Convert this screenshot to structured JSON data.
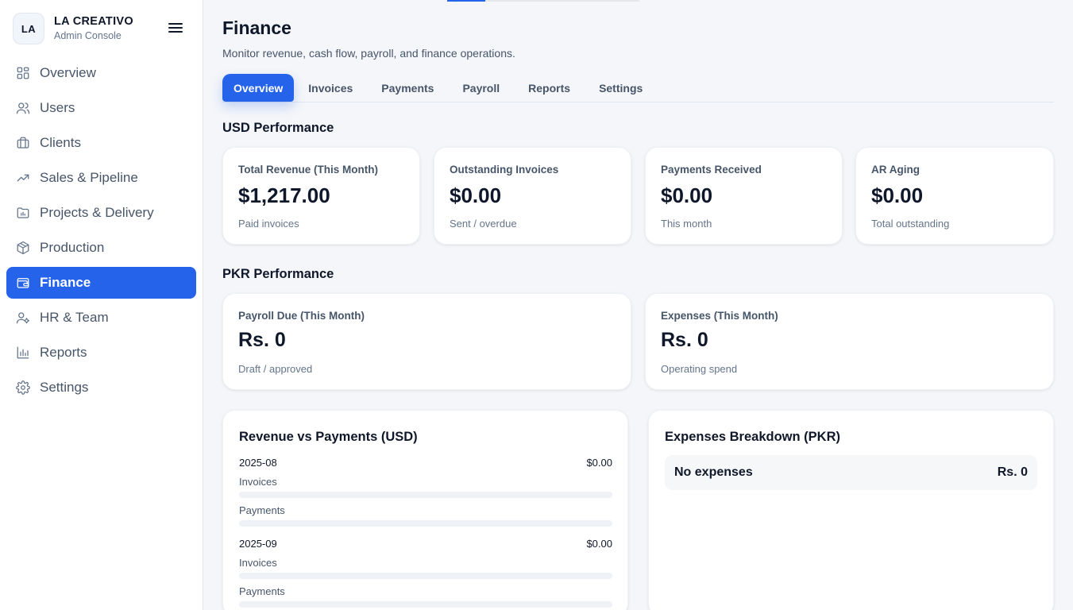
{
  "brand": {
    "initials": "LA",
    "name": "LA CREATIVO",
    "subtitle": "Admin Console"
  },
  "sidebar": {
    "items": [
      {
        "label": "Overview",
        "icon": "grid-icon",
        "active": false
      },
      {
        "label": "Users",
        "icon": "users-icon",
        "active": false
      },
      {
        "label": "Clients",
        "icon": "briefcase-icon",
        "active": false
      },
      {
        "label": "Sales & Pipeline",
        "icon": "trending-up-icon",
        "active": false
      },
      {
        "label": "Projects & Delivery",
        "icon": "folder-chart-icon",
        "active": false
      },
      {
        "label": "Production",
        "icon": "package-icon",
        "active": false
      },
      {
        "label": "Finance",
        "icon": "wallet-icon",
        "active": true
      },
      {
        "label": "HR & Team",
        "icon": "user-cog-icon",
        "active": false
      },
      {
        "label": "Reports",
        "icon": "bar-chart-icon",
        "active": false
      },
      {
        "label": "Settings",
        "icon": "gear-icon",
        "active": false
      }
    ]
  },
  "page": {
    "title": "Finance",
    "subtitle": "Monitor revenue, cash flow, payroll, and finance operations."
  },
  "tabs": [
    "Overview",
    "Invoices",
    "Payments",
    "Payroll",
    "Reports",
    "Settings"
  ],
  "active_tab": "Overview",
  "usd": {
    "title": "USD Performance",
    "cards": [
      {
        "label": "Total Revenue (This Month)",
        "value": "$1,217.00",
        "note": "Paid invoices"
      },
      {
        "label": "Outstanding Invoices",
        "value": "$0.00",
        "note": "Sent / overdue"
      },
      {
        "label": "Payments Received",
        "value": "$0.00",
        "note": "This month"
      },
      {
        "label": "AR Aging",
        "value": "$0.00",
        "note": "Total outstanding"
      }
    ]
  },
  "pkr": {
    "title": "PKR Performance",
    "cards": [
      {
        "label": "Payroll Due (This Month)",
        "value": "Rs. 0",
        "note": "Draft / approved"
      },
      {
        "label": "Expenses (This Month)",
        "value": "Rs. 0",
        "note": "Operating spend"
      }
    ]
  },
  "revenue_panel": {
    "title": "Revenue vs Payments (USD)",
    "months": [
      {
        "month": "2025-08",
        "amount": "$0.00",
        "invoices_label": "Invoices",
        "invoices_level": 0,
        "payments_label": "Payments",
        "payments_level": 0
      },
      {
        "month": "2025-09",
        "amount": "$0.00",
        "invoices_label": "Invoices",
        "invoices_level": 0,
        "payments_label": "Payments",
        "payments_level": 0
      }
    ]
  },
  "expenses_panel": {
    "title": "Expenses Breakdown (PKR)",
    "row_label": "No expenses",
    "row_value": "Rs. 0"
  },
  "colors": {
    "accent": "#2563eb",
    "background": "#f4f6f9",
    "text": "#0f172a",
    "muted": "#64748b"
  }
}
